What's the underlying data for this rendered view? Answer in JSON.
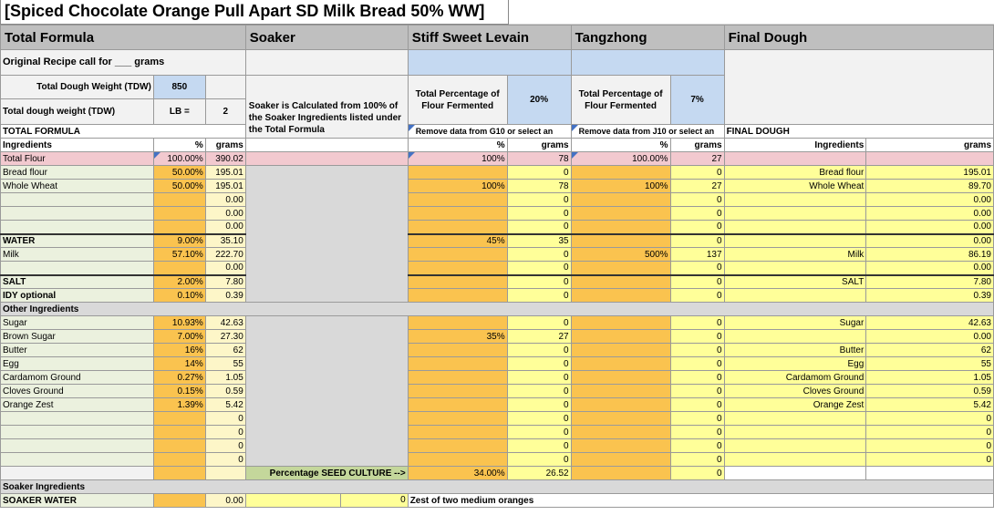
{
  "title": "[Spiced Chocolate Orange Pull Apart SD Milk Bread 50% WW]",
  "headers": {
    "total_formula": "Total Formula",
    "soaker": "Soaker",
    "levain": "Stiff Sweet Levain",
    "tangzhong": "Tangzhong",
    "final_dough": "Final Dough"
  },
  "original_recipe": "Original Recipe call for ___ grams",
  "tdw_label": "Total Dough Weight (TDW)",
  "tdw_value": "850",
  "tdw_lb_label": "Total dough weight (TDW)",
  "lb_label": "LB =",
  "lb_value": "2",
  "soaker_note": "Soaker is Calculated from 100% of the Soaker Ingredients listed under the Total Formula",
  "levain_pct_label": "Total Percentage of Flour Fermented",
  "levain_pct": "20%",
  "tz_pct_label": "Total Percentage of Flour Fermented",
  "tz_pct": "7%",
  "total_formula_label": "TOTAL FORMULA",
  "levain_hint": "Remove data from G10 or select an",
  "tz_hint": "Remove data from J10 or select an",
  "final_dough_label": "FINAL DOUGH",
  "col": {
    "ingredients": "Ingredients",
    "pct": "%",
    "grams": "grams"
  },
  "total_flour": {
    "name": "Total Flour",
    "pct": "100.00%",
    "grams": "390.02",
    "lev_pct": "100%",
    "lev_g": "78",
    "tz_pct": "100.00%",
    "tz_g": "27"
  },
  "rows": [
    {
      "name": "Bread flour",
      "pct": "50.00%",
      "g": "195.01",
      "lp": "",
      "lg": "0",
      "tp": "",
      "tg": "0",
      "fn": "Bread flour",
      "fg": "195.01"
    },
    {
      "name": "Whole Wheat",
      "pct": "50.00%",
      "g": "195.01",
      "lp": "100%",
      "lg": "78",
      "tp": "100%",
      "tg": "27",
      "fn": "Whole Wheat",
      "fg": "89.70"
    },
    {
      "name": "",
      "pct": "",
      "g": "0.00",
      "lp": "",
      "lg": "0",
      "tp": "",
      "tg": "0",
      "fn": "",
      "fg": "0.00"
    },
    {
      "name": "",
      "pct": "",
      "g": "0.00",
      "lp": "",
      "lg": "0",
      "tp": "",
      "tg": "0",
      "fn": "",
      "fg": "0.00"
    },
    {
      "name": "",
      "pct": "",
      "g": "0.00",
      "lp": "",
      "lg": "0",
      "tp": "",
      "tg": "0",
      "fn": "",
      "fg": "0.00"
    },
    {
      "name": "WATER",
      "pct": "9.00%",
      "g": "35.10",
      "lp": "45%",
      "lg": "35",
      "tp": "",
      "tg": "0",
      "fn": "",
      "fg": "0.00"
    },
    {
      "name": "Milk",
      "pct": "57.10%",
      "g": "222.70",
      "lp": "",
      "lg": "0",
      "tp": "500%",
      "tg": "137",
      "fn": "Milk",
      "fg": "86.19"
    },
    {
      "name": "",
      "pct": "",
      "g": "0.00",
      "lp": "",
      "lg": "0",
      "tp": "",
      "tg": "0",
      "fn": "",
      "fg": "0.00"
    },
    {
      "name": "SALT",
      "pct": "2.00%",
      "g": "7.80",
      "lp": "",
      "lg": "0",
      "tp": "",
      "tg": "0",
      "fn": "SALT",
      "fg": "7.80"
    },
    {
      "name": "IDY optional",
      "pct": "0.10%",
      "g": "0.39",
      "lp": "",
      "lg": "0",
      "tp": "",
      "tg": "0",
      "fn": "",
      "fg": "0.39"
    }
  ],
  "other_ingredients": "Other Ingredients",
  "other_rows": [
    {
      "name": "Sugar",
      "pct": "10.93%",
      "g": "42.63",
      "lp": "",
      "lg": "0",
      "tp": "",
      "tg": "0",
      "fn": "Sugar",
      "fg": "42.63"
    },
    {
      "name": "Brown Sugar",
      "pct": "7.00%",
      "g": "27.30",
      "lp": "35%",
      "lg": "27",
      "tp": "",
      "tg": "0",
      "fn": "",
      "fg": "0.00"
    },
    {
      "name": "Butter",
      "pct": "16%",
      "g": "62",
      "lp": "",
      "lg": "0",
      "tp": "",
      "tg": "0",
      "fn": "Butter",
      "fg": "62"
    },
    {
      "name": "Egg",
      "pct": "14%",
      "g": "55",
      "lp": "",
      "lg": "0",
      "tp": "",
      "tg": "0",
      "fn": "Egg",
      "fg": "55"
    },
    {
      "name": "Cardamom Ground",
      "pct": "0.27%",
      "g": "1.05",
      "lp": "",
      "lg": "0",
      "tp": "",
      "tg": "0",
      "fn": "Cardamom Ground",
      "fg": "1.05"
    },
    {
      "name": "Cloves Ground",
      "pct": "0.15%",
      "g": "0.59",
      "lp": "",
      "lg": "0",
      "tp": "",
      "tg": "0",
      "fn": "Cloves Ground",
      "fg": "0.59"
    },
    {
      "name": "Orange Zest",
      "pct": "1.39%",
      "g": "5.42",
      "lp": "",
      "lg": "0",
      "tp": "",
      "tg": "0",
      "fn": "Orange Zest",
      "fg": "5.42"
    },
    {
      "name": "",
      "pct": "",
      "g": "0",
      "lp": "",
      "lg": "0",
      "tp": "",
      "tg": "0",
      "fn": "",
      "fg": "0"
    },
    {
      "name": "",
      "pct": "",
      "g": "0",
      "lp": "",
      "lg": "0",
      "tp": "",
      "tg": "0",
      "fn": "",
      "fg": "0"
    },
    {
      "name": "",
      "pct": "",
      "g": "0",
      "lp": "",
      "lg": "0",
      "tp": "",
      "tg": "0",
      "fn": "",
      "fg": "0"
    },
    {
      "name": "",
      "pct": "",
      "g": "0",
      "lp": "",
      "lg": "0",
      "tp": "",
      "tg": "0",
      "fn": "",
      "fg": "0"
    }
  ],
  "seed_culture_label": "Percentage SEED CULTURE  -->",
  "seed_pct": "34.00%",
  "seed_g": "26.52",
  "seed_tg": "0",
  "soaker_ingredients": "Soaker Ingredients",
  "soaker_water": "SOAKER WATER",
  "soaker_water_g": "0.00",
  "soaker_water_s": "0",
  "zest_note": "Zest of two medium oranges"
}
